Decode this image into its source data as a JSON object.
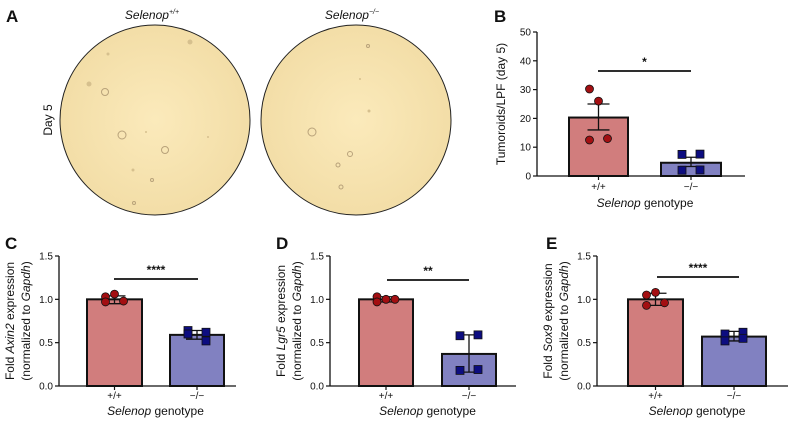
{
  "panel_a": {
    "label": "A",
    "row_label": "Day 5",
    "columns": [
      {
        "gene": "Selenop",
        "genotype": "+/+"
      },
      {
        "gene": "Selenop",
        "genotype": "−/−"
      }
    ]
  },
  "colors": {
    "wt_bar": "#d17d7d",
    "ko_bar": "#8181c1",
    "wt_point": "#a30f12",
    "ko_point": "#0d0d80",
    "plate": "#f6e4ad"
  },
  "chart_data": [
    {
      "panel": "B",
      "type": "bar",
      "categories": [
        "+/+",
        "−/−"
      ],
      "values": [
        20.3,
        4.6
      ],
      "error": [
        [
          16,
          25
        ],
        [
          3.3,
          6.5
        ]
      ],
      "points": [
        [
          30.2,
          26,
          12.5,
          13
        ],
        [
          7.5,
          7.6,
          2,
          2.1
        ]
      ],
      "ylim": [
        0,
        50
      ],
      "yticks": [
        "0",
        "10",
        "20",
        "30",
        "40",
        "50"
      ],
      "ytick_values": [
        0,
        10,
        20,
        30,
        40,
        50
      ],
      "ylabel": {
        "plain": "Tumoroids/LPF (day 5)"
      },
      "xlabel": {
        "gene": "Selenop",
        "rest": " genotype"
      },
      "significance": "*"
    },
    {
      "panel": "C",
      "type": "bar",
      "categories": [
        "+/+",
        "−/−"
      ],
      "values": [
        1.0,
        0.59
      ],
      "error": [
        [
          0.95,
          1.04
        ],
        [
          0.54,
          0.64
        ]
      ],
      "points": [
        [
          1.03,
          1.06,
          0.97,
          0.98
        ],
        [
          0.64,
          0.62,
          0.6,
          0.52
        ]
      ],
      "ylim": [
        0,
        1.5
      ],
      "yticks": [
        "0.0",
        "0.5",
        "1.0",
        "1.5"
      ],
      "ytick_values": [
        0,
        0.5,
        1.0,
        1.5
      ],
      "ylabel": {
        "pre": "Fold ",
        "gene": "Axin2",
        "post": " expression",
        "line2_pre": "(normalized to ",
        "line2_gene": "Gapdh",
        "line2_post": ")"
      },
      "xlabel": {
        "gene": "Selenop",
        "rest": " genotype"
      },
      "significance": "****"
    },
    {
      "panel": "D",
      "type": "bar",
      "categories": [
        "+/+",
        "−/−"
      ],
      "values": [
        1.0,
        0.37
      ],
      "error": [
        [
          0.97,
          1.03
        ],
        [
          0.16,
          0.59
        ]
      ],
      "points": [
        [
          1.03,
          1.0,
          0.97,
          1.0
        ],
        [
          0.58,
          0.59,
          0.18,
          0.19
        ]
      ],
      "ylim": [
        0,
        1.5
      ],
      "yticks": [
        "0.0",
        "0.5",
        "1.0",
        "1.5"
      ],
      "ytick_values": [
        0,
        0.5,
        1.0,
        1.5
      ],
      "ylabel": {
        "pre": "Fold ",
        "gene": "Lgr5",
        "post": " expression",
        "line2_pre": "(normalized to ",
        "line2_gene": "Gapdh",
        "line2_post": ")"
      },
      "xlabel": {
        "gene": "Selenop",
        "rest": " genotype"
      },
      "significance": "**"
    },
    {
      "panel": "E",
      "type": "bar",
      "categories": [
        "+/+",
        "−/−"
      ],
      "values": [
        1.0,
        0.57
      ],
      "error": [
        [
          0.93,
          1.07
        ],
        [
          0.52,
          0.63
        ]
      ],
      "points": [
        [
          1.05,
          1.08,
          0.93,
          0.96
        ],
        [
          0.6,
          0.62,
          0.52,
          0.55
        ]
      ],
      "ylim": [
        0,
        1.5
      ],
      "yticks": [
        "0.0",
        "0.5",
        "1.0",
        "1.5"
      ],
      "ytick_values": [
        0,
        0.5,
        1.0,
        1.5
      ],
      "ylabel": {
        "pre": "Fold ",
        "gene": "Sox9",
        "post": " expression",
        "line2_pre": "(normalized to ",
        "line2_gene": "Gapdh",
        "line2_post": ")"
      },
      "xlabel": {
        "gene": "Selenop",
        "rest": " genotype"
      },
      "significance": "****"
    }
  ]
}
